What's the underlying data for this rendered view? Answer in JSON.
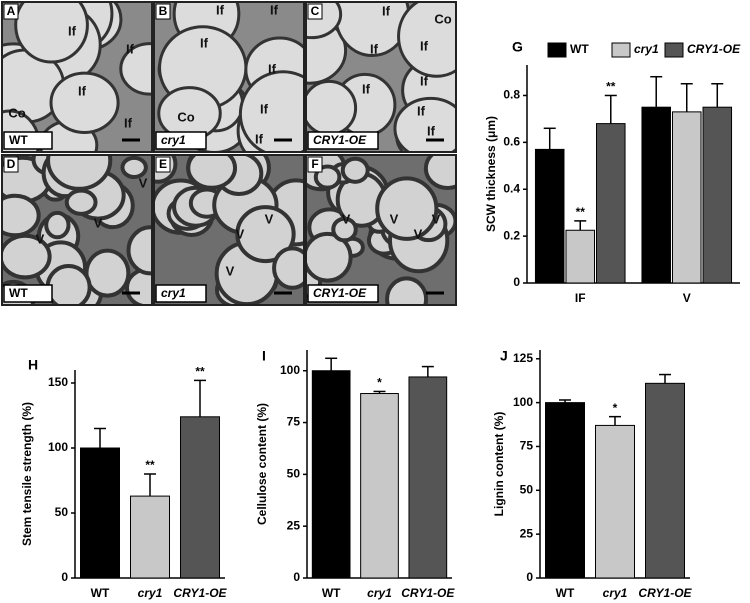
{
  "micrographs": [
    {
      "panel": "A",
      "genotype": "WT",
      "labels": [
        "If",
        "If",
        "If",
        "Co",
        "If"
      ]
    },
    {
      "panel": "B",
      "genotype": "cry1",
      "labels": [
        "If",
        "If",
        "If",
        "If",
        "If",
        "Co",
        "If"
      ]
    },
    {
      "panel": "C",
      "genotype": "CRY1-OE",
      "labels": [
        "If",
        "Co",
        "If",
        "If",
        "If",
        "If",
        "If",
        "If"
      ]
    },
    {
      "panel": "D",
      "genotype": "WT",
      "labels": [
        "V",
        "V",
        "V"
      ]
    },
    {
      "panel": "E",
      "genotype": "cry1",
      "labels": [
        "V",
        "V",
        "V"
      ]
    },
    {
      "panel": "F",
      "genotype": "CRY1-OE",
      "labels": [
        "V",
        "V",
        "V",
        "V"
      ]
    }
  ],
  "chart_data": [
    {
      "type": "bar",
      "panel": "G",
      "y_label": "SCW thickness (μm)",
      "categories": [
        "IF",
        "V"
      ],
      "series": [
        {
          "name": "WT",
          "color": "#000000",
          "values": [
            0.57,
            0.75
          ],
          "errors": [
            0.09,
            0.13
          ],
          "value_labels": [
            null,
            null
          ]
        },
        {
          "name": "cry1",
          "color": "#c8c8c8",
          "values": [
            0.225,
            0.73
          ],
          "errors": [
            0.04,
            0.12
          ],
          "value_labels": [
            "**",
            null
          ]
        },
        {
          "name": "CRY1-OE",
          "color": "#555555",
          "values": [
            0.68,
            0.75
          ],
          "errors": [
            0.12,
            0.1
          ],
          "value_labels": [
            "**",
            null
          ]
        }
      ],
      "ylim": [
        0,
        0.93
      ],
      "yticks": [
        0,
        0.2,
        0.4,
        0.6,
        0.8
      ]
    },
    {
      "type": "bar",
      "panel": "H",
      "y_label": "Stem tensile strength (%)",
      "categories": [
        "WT",
        "cry1",
        "CRY1-OE"
      ],
      "colors": [
        "#000000",
        "#c8c8c8",
        "#555555"
      ],
      "values": [
        100,
        63,
        124
      ],
      "errors": [
        15,
        17,
        28
      ],
      "value_labels": [
        null,
        "**",
        "**"
      ],
      "ylim": [
        0,
        160
      ],
      "yticks": [
        0,
        50,
        100,
        150
      ]
    },
    {
      "type": "bar",
      "panel": "I",
      "y_label": "Cellulose content (%)",
      "categories": [
        "WT",
        "cry1",
        "CRY1-OE"
      ],
      "colors": [
        "#000000",
        "#c8c8c8",
        "#555555"
      ],
      "values": [
        100,
        89,
        97
      ],
      "errors": [
        6,
        1,
        5
      ],
      "value_labels": [
        null,
        "*",
        null
      ],
      "ylim": [
        0,
        110
      ],
      "yticks": [
        0,
        25,
        50,
        75,
        100
      ]
    },
    {
      "type": "bar",
      "panel": "J",
      "y_label": "Lignin content (%)",
      "categories": [
        "WT",
        "cry1",
        "CRY1-OE"
      ],
      "colors": [
        "#000000",
        "#c8c8c8",
        "#555555"
      ],
      "values": [
        100,
        87,
        111
      ],
      "errors": [
        1.5,
        5,
        5
      ],
      "value_labels": [
        null,
        "*",
        null
      ],
      "ylim": [
        0,
        130
      ],
      "yticks": [
        0,
        25,
        50,
        75,
        100,
        125
      ]
    }
  ]
}
